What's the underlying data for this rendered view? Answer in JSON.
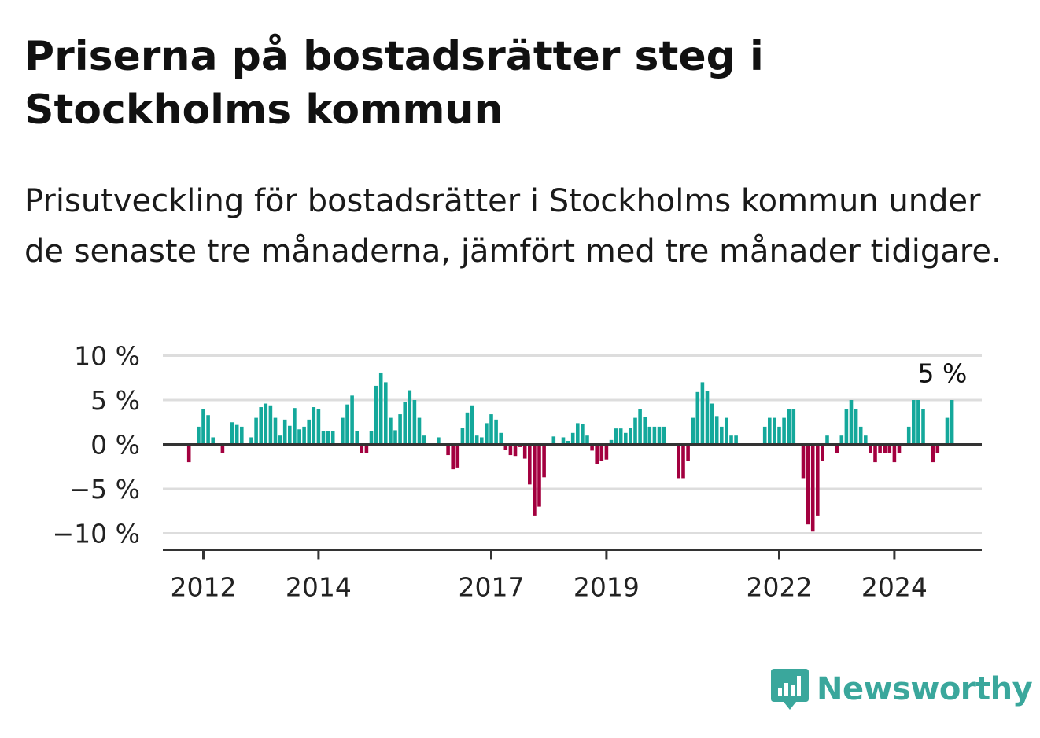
{
  "header": {
    "title": "Priserna på bostadsrätter steg i Stockholms kommun",
    "subtitle": "Prisutveckling för bostadsrätter i Stockholms kommun under de senaste tre månaderna, jämfört med tre månader tidigare."
  },
  "logo": {
    "text": "Newsworthy",
    "icon": "bar-chart-speech-bubble-icon",
    "color": "#3aa79c"
  },
  "chart_data": {
    "type": "bar",
    "title": "",
    "xlabel": "",
    "ylabel": "",
    "ylim": [
      -11.5,
      10
    ],
    "y_ticks": [
      10,
      5,
      0,
      -5,
      -10
    ],
    "y_tick_labels": [
      "10 %",
      "5 %",
      "0 %",
      "−5 %",
      "−10 %"
    ],
    "x_tick_labels": [
      "2012",
      "2014",
      "2017",
      "2019",
      "2022",
      "2024"
    ],
    "x_tick_positions": [
      2012.0,
      2014.0,
      2017.0,
      2019.0,
      2022.0,
      2024.0
    ],
    "grid": true,
    "bar_width_months": 0.75,
    "colors": {
      "positive": "#14a89b",
      "negative": "#a3003f",
      "grid": "#dddddd",
      "axis": "#333333"
    },
    "annotation": {
      "text": "5 %",
      "x": 2024.833
    },
    "series": [
      {
        "values": [
          -2,
          0,
          2,
          4,
          3.3,
          0.8,
          0,
          -1,
          0,
          2.5,
          2.2,
          2,
          0,
          0.8,
          3,
          4.2,
          4.6,
          4.4,
          3,
          1,
          2.8,
          2.1,
          4.1,
          1.7,
          2,
          2.8,
          4.2,
          4,
          1.5,
          1.5,
          1.5,
          0,
          3,
          4.5,
          5.5,
          1.5,
          -1,
          -1,
          1.5,
          6.6,
          8.1,
          7,
          3,
          1.6,
          3.4,
          4.8,
          6.1,
          5,
          3,
          1,
          0,
          0,
          0.8,
          0,
          -1.2,
          -2.8,
          -2.6,
          1.9,
          3.6,
          4.4,
          1,
          0.8,
          2.4,
          3.4,
          2.8,
          1.3,
          -0.6,
          -1.2,
          -1.3,
          -0.3,
          -1.6,
          -4.5,
          -8,
          -7,
          -3.7,
          0,
          0.9,
          0,
          0.8,
          0.4,
          1.3,
          2.4,
          2.3,
          1,
          -0.7,
          -2.2,
          -1.9,
          -1.7,
          0.5,
          1.8,
          1.8,
          1.3,
          1.9,
          3,
          4,
          3.1,
          2,
          2,
          2,
          2,
          0,
          0,
          -3.8,
          -3.8,
          -1.9,
          3,
          5.9,
          7,
          6,
          4.6,
          3.2,
          2,
          3,
          1,
          1,
          0,
          0,
          0,
          0,
          0,
          2,
          3,
          3,
          2,
          3,
          4,
          4,
          0,
          -3.8,
          -9,
          -9.8,
          -8,
          -1.9,
          1,
          0,
          -1,
          1,
          4,
          5,
          4,
          2,
          1,
          -1,
          -2,
          -1,
          -1,
          -1,
          -2,
          -1,
          0,
          2,
          5,
          5,
          4,
          0,
          -2,
          -1,
          0,
          3,
          5
        ]
      }
    ],
    "x_start_year": 2011.75
  }
}
